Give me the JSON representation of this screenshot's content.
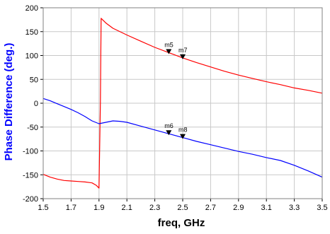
{
  "chart_data": {
    "type": "line",
    "xlabel": "freq, GHz",
    "ylabel": "Phase Difference (deg.)",
    "xlim": [
      1.5,
      3.5
    ],
    "ylim": [
      -200,
      200
    ],
    "xticks": [
      "1.5",
      "1.7",
      "1.9",
      "2.1",
      "2.3",
      "2.5",
      "2.7",
      "2.9",
      "3.1",
      "3.3",
      "3.5"
    ],
    "yticks": [
      "200",
      "150",
      "100",
      "50",
      "0",
      "-50",
      "-100",
      "-150",
      "-200"
    ],
    "grid": true,
    "colors": {
      "ylabel": "#0000ff",
      "plot_border": "#808080",
      "grid": "#c8c8c8"
    },
    "series": [
      {
        "color": "#ff0000",
        "x": [
          1.5,
          1.55,
          1.6,
          1.65,
          1.7,
          1.75,
          1.8,
          1.85,
          1.88,
          1.9,
          1.91,
          1.915,
          1.95,
          2.0,
          2.1,
          2.2,
          2.3,
          2.4,
          2.5,
          2.6,
          2.7,
          2.8,
          2.9,
          3.0,
          3.1,
          3.2,
          3.3,
          3.4,
          3.5
        ],
        "values": [
          -149,
          -155,
          -159,
          -162,
          -163,
          -164,
          -165,
          -167,
          -172,
          -178,
          5,
          178,
          168,
          157,
          143,
          130,
          117,
          106,
          95,
          85,
          76,
          67,
          59,
          52,
          45,
          39,
          32,
          27,
          21
        ]
      },
      {
        "color": "#0000ff",
        "x": [
          1.5,
          1.55,
          1.6,
          1.65,
          1.7,
          1.75,
          1.8,
          1.85,
          1.9,
          1.95,
          2.0,
          2.05,
          2.1,
          2.2,
          2.3,
          2.4,
          2.5,
          2.6,
          2.7,
          2.8,
          2.9,
          3.0,
          3.1,
          3.2,
          3.3,
          3.4,
          3.5
        ],
        "values": [
          10,
          5,
          -1,
          -7,
          -13,
          -20,
          -28,
          -37,
          -43,
          -40,
          -37,
          -38,
          -40,
          -48,
          -56,
          -64,
          -72,
          -80,
          -87,
          -94,
          -101,
          -107,
          -114,
          -120,
          -130,
          -142,
          -155
        ]
      }
    ],
    "markers": [
      {
        "label": "m5",
        "x": 2.4,
        "y": 106
      },
      {
        "label": "m7",
        "x": 2.5,
        "y": 95
      },
      {
        "label": "m6",
        "x": 2.4,
        "y": -64
      },
      {
        "label": "m8",
        "x": 2.5,
        "y": -72
      }
    ]
  }
}
